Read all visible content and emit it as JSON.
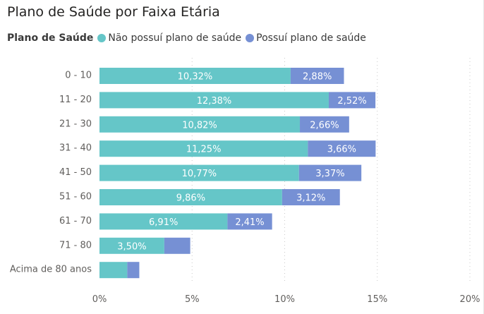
{
  "title": "Plano de Saúde por Faixa Etária",
  "legend": {
    "title": "Plano de Saúde",
    "items": [
      {
        "label": "Não possuí plano de saúde",
        "color": "#65c6c8"
      },
      {
        "label": "Possuí plano de saúde",
        "color": "#7690d4"
      }
    ]
  },
  "chart_data": {
    "type": "bar",
    "orientation": "horizontal",
    "stacked": true,
    "categories": [
      "0 - 10",
      "11 - 20",
      "21 - 30",
      "31 - 40",
      "41 - 50",
      "51 - 60",
      "61 - 70",
      "71 - 80",
      "Acima de 80 anos"
    ],
    "series": [
      {
        "name": "Não possuí plano de saúde",
        "color": "#65c6c8",
        "values": [
          10.32,
          12.38,
          10.82,
          11.25,
          10.77,
          9.86,
          6.91,
          3.5,
          1.5
        ],
        "labels": [
          "10,32%",
          "12,38%",
          "10,82%",
          "11,25%",
          "10,77%",
          "9,86%",
          "6,91%",
          "3,50%",
          ""
        ]
      },
      {
        "name": "Possuí plano de saúde",
        "color": "#7690d4",
        "values": [
          2.88,
          2.52,
          2.66,
          3.66,
          3.37,
          3.12,
          2.41,
          1.4,
          0.65
        ],
        "labels": [
          "2,88%",
          "2,52%",
          "2,66%",
          "3,66%",
          "3,37%",
          "3,12%",
          "2,41%",
          "",
          ""
        ]
      }
    ],
    "xlim": [
      0,
      20
    ],
    "xticks": [
      0,
      5,
      10,
      15,
      20
    ],
    "xtick_labels": [
      "0%",
      "5%",
      "10%",
      "15%",
      "20%"
    ],
    "grid": "vertical-dotted",
    "legend_position": "top-left"
  }
}
